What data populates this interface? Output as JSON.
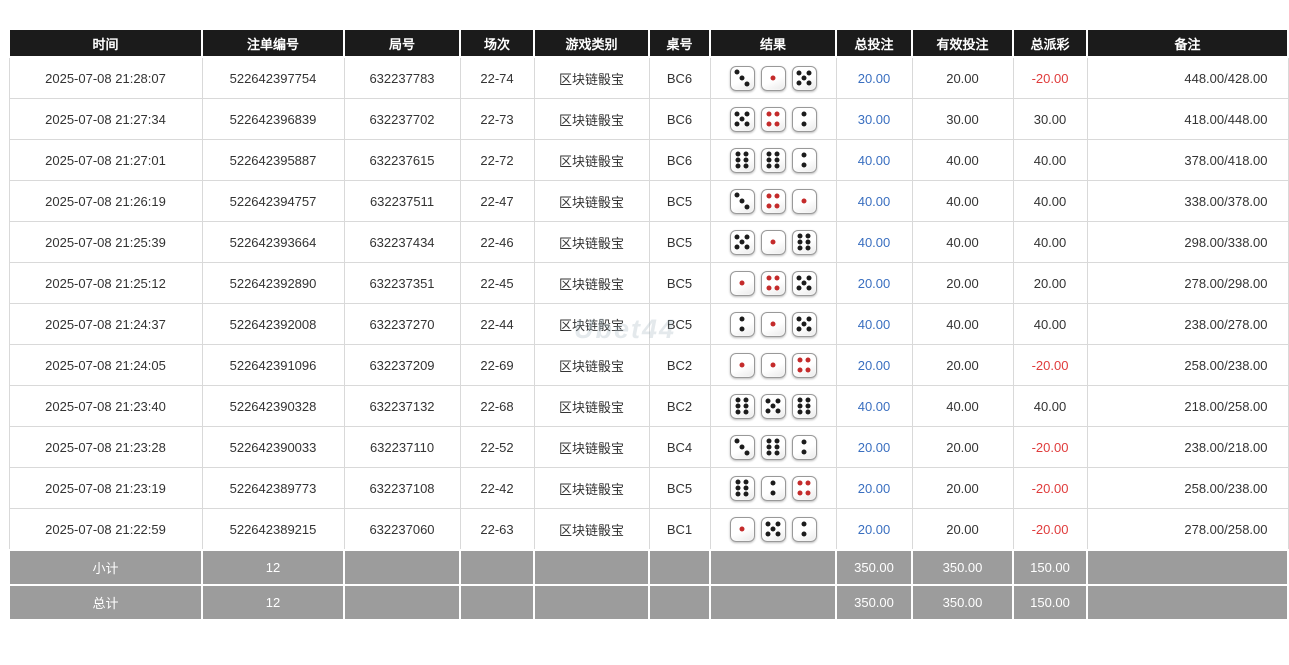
{
  "watermark": "Ubet44",
  "colors": {
    "header_bg": "#1b1b1b",
    "footer_bg": "#9c9c9c",
    "link_blue": "#3a6fc0",
    "negative_red": "#e03c3c",
    "dice_red": "#c42b2b",
    "body_text": "#333333"
  },
  "dice": {
    "red_values": [
      1,
      4
    ]
  },
  "table": {
    "columns": [
      {
        "key": "time",
        "label": "时间"
      },
      {
        "key": "bet_id",
        "label": "注单编号"
      },
      {
        "key": "round_id",
        "label": "局号"
      },
      {
        "key": "session",
        "label": "场次"
      },
      {
        "key": "game_type",
        "label": "游戏类别"
      },
      {
        "key": "table_no",
        "label": "桌号"
      },
      {
        "key": "result",
        "label": "结果"
      },
      {
        "key": "total_bet",
        "label": "总投注"
      },
      {
        "key": "valid_bet",
        "label": "有效投注"
      },
      {
        "key": "payout",
        "label": "总派彩"
      },
      {
        "key": "remark",
        "label": "备注"
      }
    ],
    "rows": [
      {
        "time": "2025-07-08 21:28:07",
        "bet_id": "522642397754",
        "round_id": "632237783",
        "session": "22-74",
        "game_type": "区块链骰宝",
        "table_no": "BC6",
        "dice": [
          3,
          1,
          5
        ],
        "total_bet": "20.00",
        "valid_bet": "20.00",
        "payout": "-20.00",
        "remark": "448.00/428.00"
      },
      {
        "time": "2025-07-08 21:27:34",
        "bet_id": "522642396839",
        "round_id": "632237702",
        "session": "22-73",
        "game_type": "区块链骰宝",
        "table_no": "BC6",
        "dice": [
          5,
          4,
          2
        ],
        "total_bet": "30.00",
        "valid_bet": "30.00",
        "payout": "30.00",
        "remark": "418.00/448.00"
      },
      {
        "time": "2025-07-08 21:27:01",
        "bet_id": "522642395887",
        "round_id": "632237615",
        "session": "22-72",
        "game_type": "区块链骰宝",
        "table_no": "BC6",
        "dice": [
          6,
          6,
          2
        ],
        "total_bet": "40.00",
        "valid_bet": "40.00",
        "payout": "40.00",
        "remark": "378.00/418.00"
      },
      {
        "time": "2025-07-08 21:26:19",
        "bet_id": "522642394757",
        "round_id": "632237511",
        "session": "22-47",
        "game_type": "区块链骰宝",
        "table_no": "BC5",
        "dice": [
          3,
          4,
          1
        ],
        "total_bet": "40.00",
        "valid_bet": "40.00",
        "payout": "40.00",
        "remark": "338.00/378.00"
      },
      {
        "time": "2025-07-08 21:25:39",
        "bet_id": "522642393664",
        "round_id": "632237434",
        "session": "22-46",
        "game_type": "区块链骰宝",
        "table_no": "BC5",
        "dice": [
          5,
          1,
          6
        ],
        "total_bet": "40.00",
        "valid_bet": "40.00",
        "payout": "40.00",
        "remark": "298.00/338.00"
      },
      {
        "time": "2025-07-08 21:25:12",
        "bet_id": "522642392890",
        "round_id": "632237351",
        "session": "22-45",
        "game_type": "区块链骰宝",
        "table_no": "BC5",
        "dice": [
          1,
          4,
          5
        ],
        "total_bet": "20.00",
        "valid_bet": "20.00",
        "payout": "20.00",
        "remark": "278.00/298.00"
      },
      {
        "time": "2025-07-08 21:24:37",
        "bet_id": "522642392008",
        "round_id": "632237270",
        "session": "22-44",
        "game_type": "区块链骰宝",
        "table_no": "BC5",
        "dice": [
          2,
          1,
          5
        ],
        "total_bet": "40.00",
        "valid_bet": "40.00",
        "payout": "40.00",
        "remark": "238.00/278.00"
      },
      {
        "time": "2025-07-08 21:24:05",
        "bet_id": "522642391096",
        "round_id": "632237209",
        "session": "22-69",
        "game_type": "区块链骰宝",
        "table_no": "BC2",
        "dice": [
          1,
          1,
          4
        ],
        "total_bet": "20.00",
        "valid_bet": "20.00",
        "payout": "-20.00",
        "remark": "258.00/238.00"
      },
      {
        "time": "2025-07-08 21:23:40",
        "bet_id": "522642390328",
        "round_id": "632237132",
        "session": "22-68",
        "game_type": "区块链骰宝",
        "table_no": "BC2",
        "dice": [
          6,
          5,
          6
        ],
        "total_bet": "40.00",
        "valid_bet": "40.00",
        "payout": "40.00",
        "remark": "218.00/258.00"
      },
      {
        "time": "2025-07-08 21:23:28",
        "bet_id": "522642390033",
        "round_id": "632237110",
        "session": "22-52",
        "game_type": "区块链骰宝",
        "table_no": "BC4",
        "dice": [
          3,
          6,
          2
        ],
        "total_bet": "20.00",
        "valid_bet": "20.00",
        "payout": "-20.00",
        "remark": "238.00/218.00"
      },
      {
        "time": "2025-07-08 21:23:19",
        "bet_id": "522642389773",
        "round_id": "632237108",
        "session": "22-42",
        "game_type": "区块链骰宝",
        "table_no": "BC5",
        "dice": [
          6,
          2,
          4
        ],
        "total_bet": "20.00",
        "valid_bet": "20.00",
        "payout": "-20.00",
        "remark": "258.00/238.00"
      },
      {
        "time": "2025-07-08 21:22:59",
        "bet_id": "522642389215",
        "round_id": "632237060",
        "session": "22-63",
        "game_type": "区块链骰宝",
        "table_no": "BC1",
        "dice": [
          1,
          5,
          2
        ],
        "total_bet": "20.00",
        "valid_bet": "20.00",
        "payout": "-20.00",
        "remark": "278.00/258.00"
      }
    ],
    "footer": [
      {
        "label": "小计",
        "count": "12",
        "total_bet": "350.00",
        "valid_bet": "350.00",
        "payout": "150.00"
      },
      {
        "label": "总计",
        "count": "12",
        "total_bet": "350.00",
        "valid_bet": "350.00",
        "payout": "150.00"
      }
    ]
  }
}
